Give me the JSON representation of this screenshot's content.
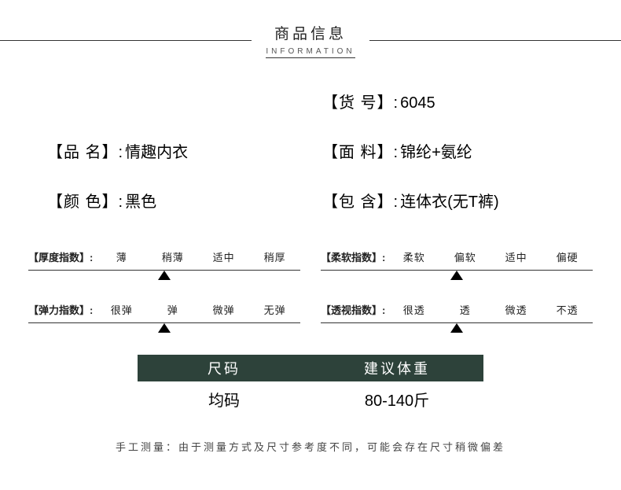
{
  "header": {
    "title_cn": "商品信息",
    "title_en": "INFORMATION"
  },
  "info": {
    "product_name_label": "【品 名】:",
    "product_name_value": "情趣内衣",
    "color_label": "【颜 色】:",
    "color_value": "黑色",
    "item_no_label": "【货 号】:",
    "item_no_value": "6045",
    "material_label": "【面 料】:",
    "material_value": "锦纶+氨纶",
    "includes_label": "【包 含】:",
    "includes_value": "连体衣(无T裤)"
  },
  "indices": {
    "thickness": {
      "title": "【厚度指数】:",
      "options": [
        "薄",
        "稍薄",
        "适中",
        "稍厚"
      ],
      "pointer_percent": 50
    },
    "softness": {
      "title": "【柔软指数】:",
      "options": [
        "柔软",
        "偏软",
        "适中",
        "偏硬"
      ],
      "pointer_percent": 50
    },
    "elasticity": {
      "title": "【弹力指数】:",
      "options": [
        "很弹",
        "弹",
        "微弹",
        "无弹"
      ],
      "pointer_percent": 50
    },
    "transparency": {
      "title": "【透视指数】:",
      "options": [
        "很透",
        "透",
        "微透",
        "不透"
      ],
      "pointer_percent": 50
    }
  },
  "size_table": {
    "headers": [
      "尺码",
      "建议体重"
    ],
    "row": [
      "均码",
      "80-140斤"
    ],
    "header_bg": "#2d423a",
    "header_color": "#ffffff"
  },
  "footnote": "手工测量：由于测量方式及尺寸参考度不同，可能会存在尺寸稍微偏差"
}
